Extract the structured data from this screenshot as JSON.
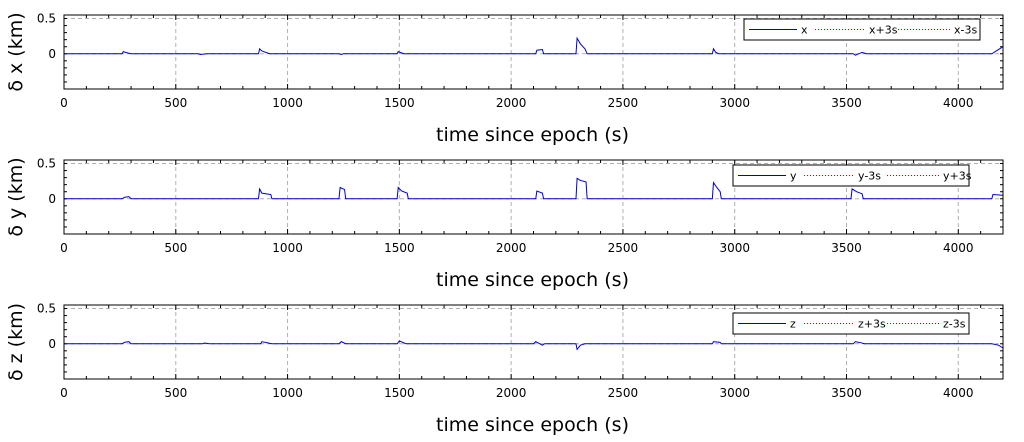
{
  "chart_data": [
    {
      "type": "line",
      "title": "",
      "xlabel": "time since epoch (s)",
      "ylabel": "δ x (km)",
      "xlim": [
        0,
        4200
      ],
      "ylim": [
        -0.5,
        0.55
      ],
      "xticks": [
        0,
        500,
        1000,
        1500,
        2000,
        2500,
        3000,
        3500,
        4000
      ],
      "yticks": [
        0.5,
        0
      ],
      "grid": true,
      "legend_position": "top-right",
      "series": [
        {
          "name": "x",
          "color": "#0000cc",
          "style": "solid",
          "points": [
            [
              0,
              0
            ],
            [
              260,
              0
            ],
            [
              265,
              0.03
            ],
            [
              275,
              0.02
            ],
            [
              300,
              0
            ],
            [
              600,
              0
            ],
            [
              610,
              -0.01
            ],
            [
              640,
              0
            ],
            [
              870,
              0
            ],
            [
              875,
              0.07
            ],
            [
              885,
              0.04
            ],
            [
              920,
              0
            ],
            [
              1230,
              0
            ],
            [
              1240,
              -0.01
            ],
            [
              1250,
              0
            ],
            [
              1490,
              0
            ],
            [
              1495,
              0.03
            ],
            [
              1520,
              0
            ],
            [
              2110,
              0
            ],
            [
              2115,
              0.05
            ],
            [
              2140,
              0.06
            ],
            [
              2145,
              0
            ],
            [
              2290,
              0
            ],
            [
              2295,
              0.22
            ],
            [
              2310,
              0.14
            ],
            [
              2330,
              0.07
            ],
            [
              2340,
              0
            ],
            [
              2900,
              0
            ],
            [
              2905,
              0.07
            ],
            [
              2915,
              0.02
            ],
            [
              2930,
              0
            ],
            [
              3530,
              0
            ],
            [
              3540,
              -0.02
            ],
            [
              3570,
              0.02
            ],
            [
              3590,
              0
            ],
            [
              4150,
              0
            ],
            [
              4200,
              0.1
            ]
          ]
        },
        {
          "name": "x+3s",
          "color": "#cc0000",
          "style": "dotted",
          "points": []
        },
        {
          "name": "x-3s",
          "color": "#cc0000",
          "style": "dotted",
          "points": []
        }
      ]
    },
    {
      "type": "line",
      "title": "",
      "xlabel": "time since epoch (s)",
      "ylabel": "δ y (km)",
      "xlim": [
        0,
        4200
      ],
      "ylim": [
        -0.5,
        0.55
      ],
      "xticks": [
        0,
        500,
        1000,
        1500,
        2000,
        2500,
        3000,
        3500,
        4000
      ],
      "yticks": [
        0.5,
        0
      ],
      "grid": true,
      "legend_position": "top-right",
      "series": [
        {
          "name": "y",
          "color": "#0000cc",
          "style": "solid",
          "points": [
            [
              0,
              0
            ],
            [
              260,
              0
            ],
            [
              270,
              0.02
            ],
            [
              290,
              0.03
            ],
            [
              300,
              0
            ],
            [
              870,
              0
            ],
            [
              875,
              0.14
            ],
            [
              885,
              0.08
            ],
            [
              925,
              0.06
            ],
            [
              930,
              0
            ],
            [
              1230,
              0
            ],
            [
              1235,
              0.16
            ],
            [
              1255,
              0.13
            ],
            [
              1260,
              0
            ],
            [
              1490,
              0
            ],
            [
              1495,
              0.16
            ],
            [
              1510,
              0.11
            ],
            [
              1535,
              0.08
            ],
            [
              1540,
              0
            ],
            [
              2110,
              0
            ],
            [
              2115,
              0.11
            ],
            [
              2140,
              0.08
            ],
            [
              2145,
              0
            ],
            [
              2290,
              0
            ],
            [
              2295,
              0.29
            ],
            [
              2310,
              0.26
            ],
            [
              2335,
              0.24
            ],
            [
              2340,
              0
            ],
            [
              2900,
              0
            ],
            [
              2905,
              0.23
            ],
            [
              2920,
              0.16
            ],
            [
              2935,
              0.1
            ],
            [
              2940,
              0
            ],
            [
              3520,
              0
            ],
            [
              3525,
              0.14
            ],
            [
              3545,
              0.1
            ],
            [
              3570,
              0.07
            ],
            [
              3575,
              0
            ],
            [
              4150,
              0
            ],
            [
              4155,
              0.06
            ],
            [
              4200,
              0.05
            ]
          ]
        },
        {
          "name": "y-3s",
          "color": "#cc0000",
          "style": "dotted",
          "points": []
        },
        {
          "name": "y+3s",
          "color": "#cc0000",
          "style": "dotted",
          "points": []
        }
      ]
    },
    {
      "type": "line",
      "title": "",
      "xlabel": "time since epoch (s)",
      "ylabel": "δ z (km)",
      "xlim": [
        0,
        4200
      ],
      "ylim": [
        -0.5,
        0.55
      ],
      "xticks": [
        0,
        500,
        1000,
        1500,
        2000,
        2500,
        3000,
        3500,
        4000
      ],
      "yticks": [
        0.5,
        0
      ],
      "grid": true,
      "legend_position": "top-right",
      "series": [
        {
          "name": "z",
          "color": "#0000cc",
          "style": "solid",
          "points": [
            [
              0,
              0
            ],
            [
              260,
              0
            ],
            [
              270,
              0.02
            ],
            [
              290,
              0.03
            ],
            [
              300,
              0
            ],
            [
              620,
              0
            ],
            [
              630,
              0.01
            ],
            [
              650,
              0
            ],
            [
              880,
              0
            ],
            [
              885,
              0.03
            ],
            [
              930,
              0
            ],
            [
              1230,
              0
            ],
            [
              1240,
              0.03
            ],
            [
              1260,
              0
            ],
            [
              1490,
              0
            ],
            [
              1500,
              0.04
            ],
            [
              1530,
              0
            ],
            [
              2100,
              0
            ],
            [
              2110,
              0.03
            ],
            [
              2140,
              -0.02
            ],
            [
              2150,
              0
            ],
            [
              2290,
              0
            ],
            [
              2295,
              -0.08
            ],
            [
              2310,
              -0.02
            ],
            [
              2330,
              0
            ],
            [
              2900,
              0
            ],
            [
              2905,
              0.03
            ],
            [
              2935,
              0.02
            ],
            [
              2940,
              0
            ],
            [
              3530,
              0
            ],
            [
              3540,
              0.03
            ],
            [
              3570,
              0.01
            ],
            [
              3580,
              0
            ],
            [
              4150,
              0
            ],
            [
              4180,
              -0.02
            ],
            [
              4200,
              -0.06
            ]
          ]
        },
        {
          "name": "z+3s",
          "color": "#cc0000",
          "style": "dotted",
          "points": []
        },
        {
          "name": "z-3s",
          "color": "#cc0000",
          "style": "dotted",
          "points": []
        }
      ]
    }
  ]
}
